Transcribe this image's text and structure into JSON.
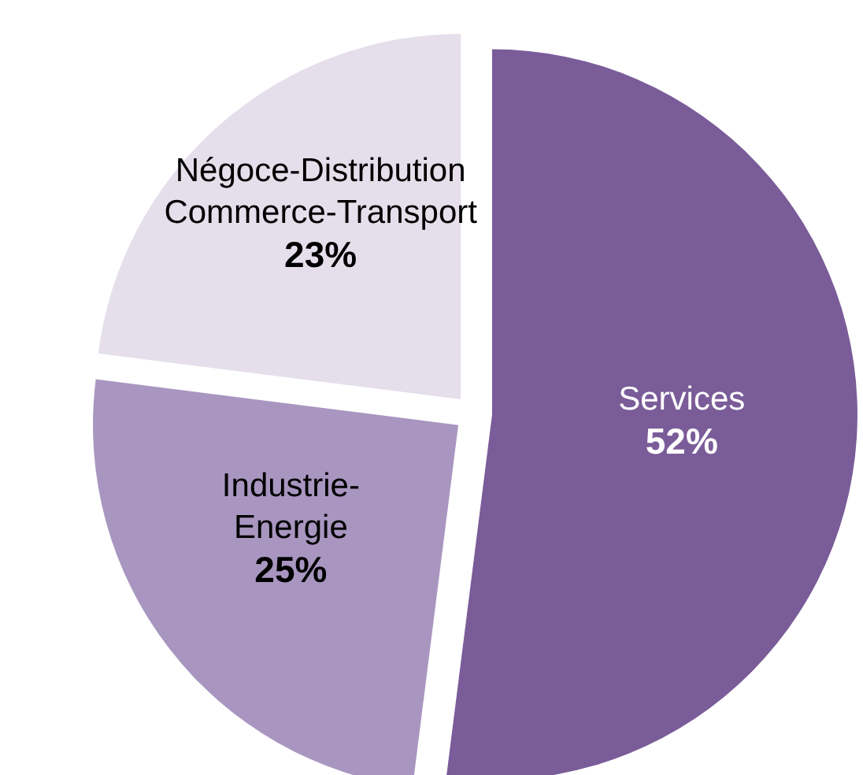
{
  "chart_data": {
    "type": "pie",
    "categories": [
      "Services",
      "Industrie-\nEnergie",
      "Négoce-Distribution\nCommerce-Transport"
    ],
    "values": [
      52,
      25,
      23
    ],
    "colors": [
      "#7a5c99",
      "#a896c0",
      "#e5dfec"
    ],
    "value_labels": [
      "52%",
      "25%",
      "23%"
    ]
  }
}
